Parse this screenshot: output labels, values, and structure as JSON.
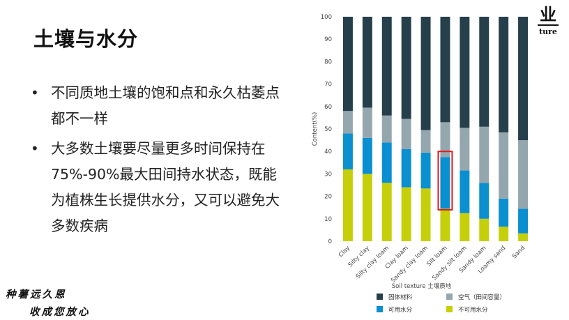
{
  "slide": {
    "title": "土壤与水分",
    "bullets": [
      "不同质地土壤的饱和点和永久枯萎点都不一样",
      "大多数土壤要尽量更多时间保持在75%-90%最大田间持水状态，既能为植株生长提供水分，又可以避免大多数疾病"
    ],
    "bullet_glyph": "•",
    "tagline": [
      "种薯远久恩",
      "收成您放心"
    ],
    "logo": {
      "mark": "业",
      "word": "ture"
    }
  },
  "colors": {
    "solid": "#253f4b",
    "air": "#95a7ae",
    "available": "#0a8fd0",
    "unavailable": "#c5cf0a",
    "highlight": "#e01b1b"
  },
  "chart_data": {
    "type": "bar",
    "stacked": true,
    "xlabel": "Soil texture 土壤质地",
    "ylabel": "Content(%)",
    "ylim": [
      0,
      100
    ],
    "yticks": [
      0,
      10,
      20,
      30,
      40,
      50,
      60,
      70,
      80,
      90,
      100
    ],
    "grid": false,
    "legend_position": "bottom",
    "categories": [
      "Clay",
      "Silty clay",
      "Silty clay loam",
      "Clay loam",
      "Sandy clay loam",
      "Silt loam",
      "Sandy silt loam",
      "Sandy loam",
      "Loamy sand",
      "Sand"
    ],
    "series": [
      {
        "name": "不可用水分",
        "color": "unavailable",
        "values": [
          32,
          30,
          26,
          24,
          23.5,
          14.5,
          12.5,
          10,
          6.5,
          3.5
        ]
      },
      {
        "name": "可用水分",
        "color": "available",
        "values": [
          16,
          16,
          18,
          17,
          16,
          23,
          19,
          16,
          12.5,
          11
        ]
      },
      {
        "name": "空气（田间容量）",
        "color": "air",
        "values": [
          10,
          13.5,
          12,
          13.5,
          10,
          15.5,
          19,
          25,
          29.5,
          30.5
        ]
      },
      {
        "name": "固体材料",
        "color": "solid",
        "values": [
          42,
          40.5,
          44,
          45.5,
          50.5,
          47,
          49.5,
          49,
          51.5,
          55
        ]
      }
    ],
    "annotation": {
      "type": "highlight-box",
      "category": "Silt loam",
      "range": [
        14,
        40
      ]
    }
  }
}
